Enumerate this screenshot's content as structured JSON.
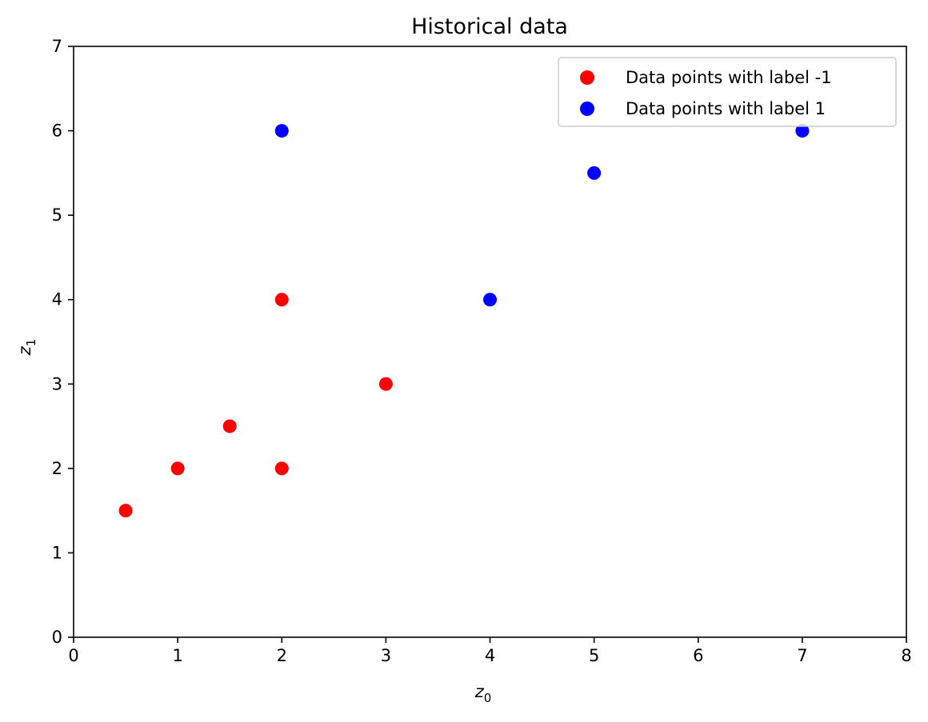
{
  "chart_data": {
    "type": "scatter",
    "title": "Historical data",
    "xlabel": {
      "base": "z",
      "subscript": "0"
    },
    "ylabel": {
      "base": "z",
      "subscript": "1"
    },
    "xlim": [
      0,
      8
    ],
    "ylim": [
      0,
      7
    ],
    "xticks": [
      0,
      1,
      2,
      3,
      4,
      5,
      6,
      7,
      8
    ],
    "yticks": [
      0,
      1,
      2,
      3,
      4,
      5,
      6,
      7
    ],
    "grid": false,
    "legend_position": "top-right",
    "series": [
      {
        "name": "Data points with label -1",
        "color": "#ff0000",
        "points": [
          [
            0.5,
            1.5
          ],
          [
            1,
            2
          ],
          [
            1.5,
            2.5
          ],
          [
            2,
            2
          ],
          [
            2,
            4
          ],
          [
            3,
            3
          ]
        ]
      },
      {
        "name": "Data points with label 1",
        "color": "#0000ff",
        "points": [
          [
            2,
            6
          ],
          [
            4,
            4
          ],
          [
            5,
            5.5
          ],
          [
            7,
            6
          ]
        ]
      }
    ]
  }
}
